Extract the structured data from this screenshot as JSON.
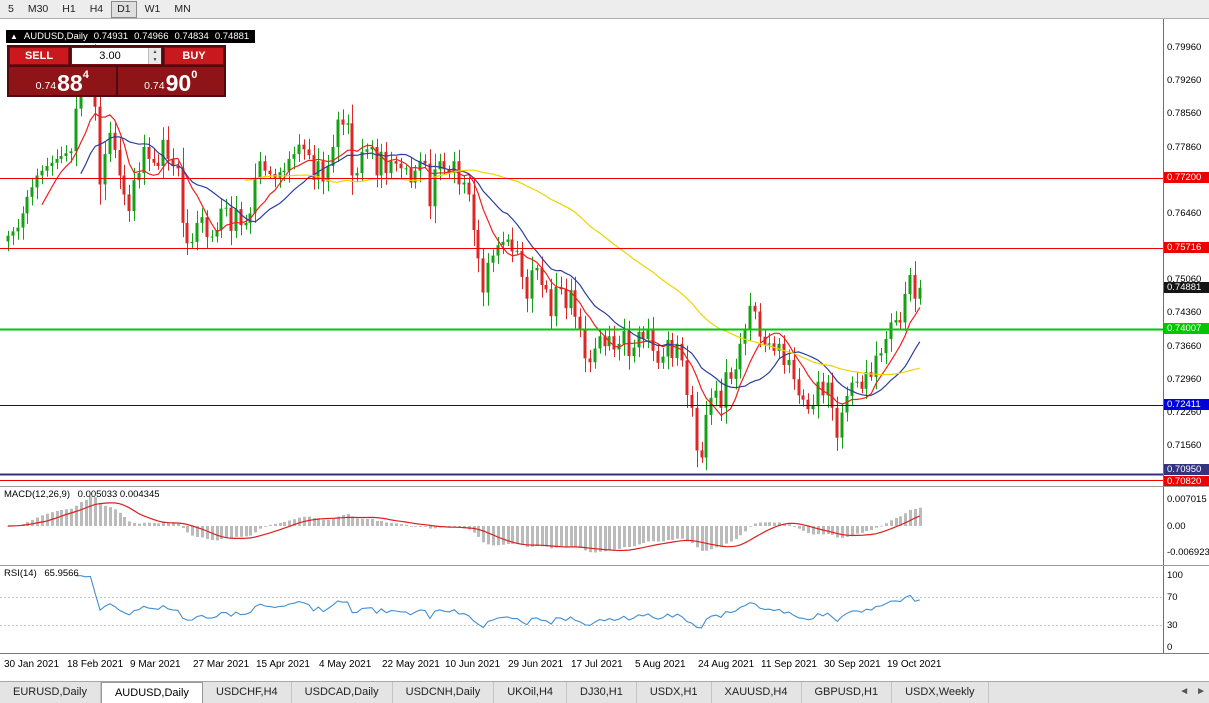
{
  "toolbar": {
    "timeframes": [
      "5",
      "M30",
      "H1",
      "H4",
      "D1",
      "W1",
      "MN"
    ],
    "active": "D1"
  },
  "ohlc_bar": {
    "expand_icon": "▲",
    "symbol": "AUDUSD,Daily",
    "open": "0.74931",
    "high": "0.74966",
    "low": "0.74834",
    "close": "0.74881"
  },
  "trade_panel": {
    "sell_label": "SELL",
    "buy_label": "BUY",
    "lot": "3.00",
    "spin_up": "▲",
    "spin_down": "▼",
    "bid": {
      "small": "0.74",
      "big": "88",
      "sup": "4"
    },
    "ask": {
      "small": "0.74",
      "big": "90",
      "sup": "0"
    },
    "panel_bg": "#4f0b0e",
    "button_color": "#c9181e",
    "quote_bg": "#8e1417"
  },
  "macd_panel": {
    "name": "MACD(12,26,9)",
    "values": "0.005033 0.004345"
  },
  "rsi_panel": {
    "name": "RSI(14)",
    "value": "65.9566"
  },
  "tabbar": {
    "tabs": [
      "EURUSD,Daily",
      "AUDUSD,Daily",
      "USDCHF,H4",
      "USDCAD,Daily",
      "USDCNH,Daily",
      "UKOil,H4",
      "DJ30,H1",
      "USDX,H1",
      "XAUUSD,H4",
      "GBPUSD,H1",
      "USDX,Weekly"
    ],
    "active": "AUDUSD,Daily",
    "left_arrow": "◄",
    "right_arrow": "►"
  },
  "chart_data": {
    "type": "candlestick",
    "symbol": "AUDUSD",
    "timeframe": "Daily",
    "current": {
      "open": 0.74931,
      "high": 0.74966,
      "low": 0.74834,
      "close": 0.74881
    },
    "price_range": [
      0.707,
      0.8055
    ],
    "closes": [
      0.7598,
      0.7607,
      0.7615,
      0.7645,
      0.768,
      0.77,
      0.7725,
      0.7735,
      0.7745,
      0.7752,
      0.776,
      0.7766,
      0.7772,
      0.7776,
      0.7866,
      0.7917,
      0.791,
      0.7969,
      0.787,
      0.7706,
      0.777,
      0.7815,
      0.7779,
      0.7725,
      0.7685,
      0.765,
      0.7715,
      0.773,
      0.7785,
      0.776,
      0.7752,
      0.7745,
      0.78,
      0.776,
      0.7745,
      0.774,
      0.7625,
      0.7582,
      0.7585,
      0.7625,
      0.7637,
      0.7595,
      0.7596,
      0.761,
      0.7655,
      0.7657,
      0.7608,
      0.7654,
      0.762,
      0.7625,
      0.7645,
      0.772,
      0.7755,
      0.7735,
      0.7728,
      0.772,
      0.7732,
      0.7735,
      0.776,
      0.777,
      0.779,
      0.778,
      0.7768,
      0.7716,
      0.7755,
      0.7712,
      0.7745,
      0.7785,
      0.7843,
      0.7832,
      0.7835,
      0.7725,
      0.773,
      0.7775,
      0.778,
      0.7785,
      0.7725,
      0.7775,
      0.773,
      0.7755,
      0.775,
      0.774,
      0.774,
      0.771,
      0.7735,
      0.7756,
      0.775,
      0.766,
      0.7738,
      0.7755,
      0.7738,
      0.773,
      0.7755,
      0.7706,
      0.771,
      0.7685,
      0.761,
      0.755,
      0.7478,
      0.7541,
      0.7556,
      0.7578,
      0.7585,
      0.759,
      0.7565,
      0.7566,
      0.7511,
      0.7465,
      0.7525,
      0.753,
      0.7494,
      0.7485,
      0.7428,
      0.749,
      0.7485,
      0.7445,
      0.7483,
      0.7427,
      0.74,
      0.7339,
      0.7331,
      0.736,
      0.7386,
      0.7365,
      0.7386,
      0.7358,
      0.737,
      0.7397,
      0.7344,
      0.7362,
      0.7395,
      0.738,
      0.74,
      0.7355,
      0.733,
      0.7343,
      0.7378,
      0.734,
      0.737,
      0.7335,
      0.7262,
      0.7235,
      0.7145,
      0.713,
      0.722,
      0.7256,
      0.7271,
      0.7235,
      0.731,
      0.7296,
      0.7316,
      0.737,
      0.74,
      0.745,
      0.7438,
      0.7385,
      0.7368,
      0.7371,
      0.7355,
      0.737,
      0.7325,
      0.7336,
      0.7295,
      0.7261,
      0.7252,
      0.7232,
      0.7241,
      0.729,
      0.7261,
      0.7288,
      0.7235,
      0.7172,
      0.7225,
      0.726,
      0.7288,
      0.729,
      0.7275,
      0.731,
      0.73,
      0.7345,
      0.735,
      0.738,
      0.7415,
      0.742,
      0.7415,
      0.7475,
      0.7515,
      0.7465,
      0.74881
    ],
    "candle_up_color": "#16a016",
    "candle_down_color": "#dc2727",
    "scale_labels": [
      "0.79960",
      "0.79260",
      "0.78560",
      "0.77860",
      "0.76460",
      "0.75060",
      "0.74360",
      "0.73660",
      "0.72960",
      "0.72260",
      "0.71560"
    ],
    "levels": [
      {
        "label": "0.77200",
        "price": 0.772,
        "color": "#ee0000",
        "width": 1
      },
      {
        "label": "0.75716",
        "price": 0.75716,
        "color": "#ee0000",
        "width": 1
      },
      {
        "label": "0.74881",
        "price": 0.74881,
        "color": "#151515",
        "width": 0
      },
      {
        "label": "0.74007",
        "price": 0.74007,
        "color": "#00c800",
        "width": 2
      },
      {
        "label": "0.72411",
        "price": 0.72411,
        "color": "#0000dd",
        "width": 1
      },
      {
        "label": "0.70950",
        "price": 0.7095,
        "color": "#33337f",
        "width": 2,
        "badge_dy": -4
      },
      {
        "label": "0.70820",
        "price": 0.7082,
        "color": "#ee0000",
        "width": 1,
        "badge_dy": 2
      }
    ],
    "moving_averages": [
      {
        "period": 8,
        "color": "#ef1f1f"
      },
      {
        "period": 16,
        "color": "#2c3e9c"
      },
      {
        "period": 50,
        "color": "#eed303"
      }
    ],
    "macd": {
      "params": [
        12,
        26,
        9
      ],
      "histogram_color": "#bbbbbb",
      "signal_color": "#dd1f1f",
      "range": [
        -0.0095,
        0.0095
      ],
      "axis_labels": [
        "0.007015",
        "0.00",
        "-0.006923"
      ]
    },
    "rsi": {
      "period": 14,
      "color": "#3f8fd2",
      "level_lines": [
        70,
        30
      ],
      "range": [
        0,
        100
      ],
      "axis_labels": [
        "100",
        "70",
        "30",
        "0"
      ]
    },
    "time_labels": [
      {
        "text": "30 Jan 2021",
        "i": 0
      },
      {
        "text": "18 Feb 2021",
        "i": 13
      },
      {
        "text": "9 Mar 2021",
        "i": 26
      },
      {
        "text": "27 Mar 2021",
        "i": 39
      },
      {
        "text": "15 Apr 2021",
        "i": 52
      },
      {
        "text": "4 May 2021",
        "i": 65
      },
      {
        "text": "22 May 2021",
        "i": 78
      },
      {
        "text": "10 Jun 2021",
        "i": 91
      },
      {
        "text": "29 Jun 2021",
        "i": 104
      },
      {
        "text": "17 Jul 2021",
        "i": 117
      },
      {
        "text": "5 Aug 2021",
        "i": 130
      },
      {
        "text": "24 Aug 2021",
        "i": 143
      },
      {
        "text": "11 Sep 2021",
        "i": 156
      },
      {
        "text": "30 Sep 2021",
        "i": 169
      },
      {
        "text": "19 Oct 2021",
        "i": 182
      }
    ]
  }
}
